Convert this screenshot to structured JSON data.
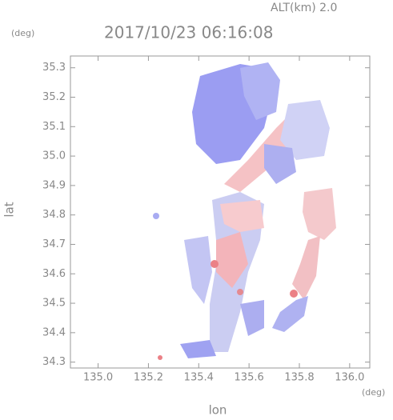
{
  "chart_data": {
    "type": "radar-map",
    "title": "2017/10/23 06:16:08",
    "altitude_label": "ALT(km) 2.0",
    "x_label": "lon",
    "y_label": "lat",
    "x_unit": "(deg)",
    "y_unit": "(deg)",
    "xlim": [
      134.89,
      136.08
    ],
    "ylim": [
      34.28,
      35.34
    ],
    "xticks": [
      {
        "value": 135.0,
        "label": "135.0"
      },
      135.2,
      135.4,
      135.6,
      135.8,
      {
        "value": 136.0,
        "label": "136.0"
      }
    ],
    "yticks": [
      34.3,
      34.4,
      34.5,
      34.6,
      34.7,
      34.8,
      34.9,
      {
        "value": 35.0,
        "label": "35.0"
      },
      35.1,
      35.2,
      35.3
    ]
  }
}
